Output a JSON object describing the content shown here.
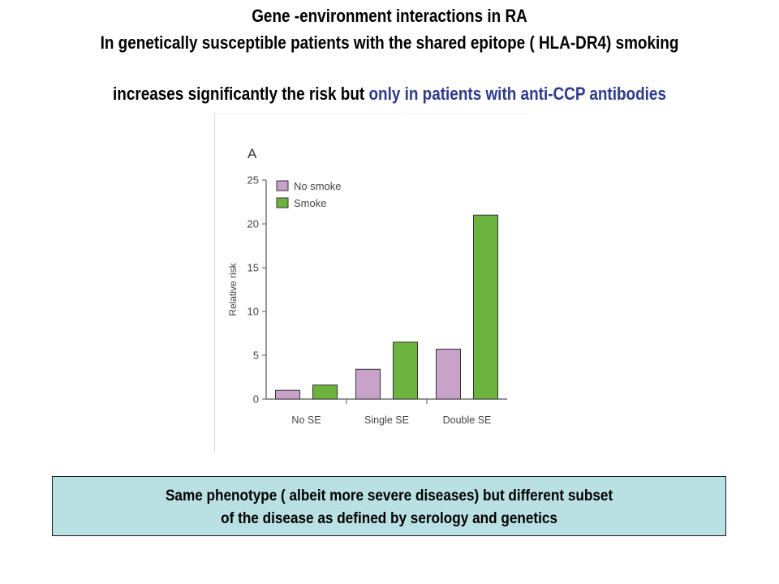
{
  "slide": {
    "title_line1": "Gene -environment interactions in RA",
    "title_line2": "In genetically susceptible patients with the shared epitope ( HLA-DR4) smoking",
    "title_line3_plain": "increases significantly the risk but ",
    "title_line3_highlight": "only in patients with anti-CCP antibodies",
    "highlight_color": "#2e3a8c",
    "note_line1": "Same phenotype ( albeit more severe diseases) but different subset",
    "note_line2": "of the disease as defined by serology and genetics",
    "note_bg_color": "#b9e0e3"
  },
  "chart_data": {
    "type": "bar",
    "panel_label": "A",
    "categories": [
      "No SE",
      "Single SE",
      "Double SE"
    ],
    "series": [
      {
        "name": "No smoke",
        "values": [
          1.0,
          3.4,
          5.7
        ],
        "color": "#c9a2c9"
      },
      {
        "name": "Smoke",
        "values": [
          1.6,
          6.5,
          21.0
        ],
        "color": "#6db33f"
      }
    ],
    "ylabel": "Relative risk",
    "xlabel": "",
    "ylim": [
      0,
      25
    ],
    "yticks": [
      0,
      5,
      10,
      15,
      20,
      25
    ],
    "legend_position": "top-left",
    "grid": false
  }
}
